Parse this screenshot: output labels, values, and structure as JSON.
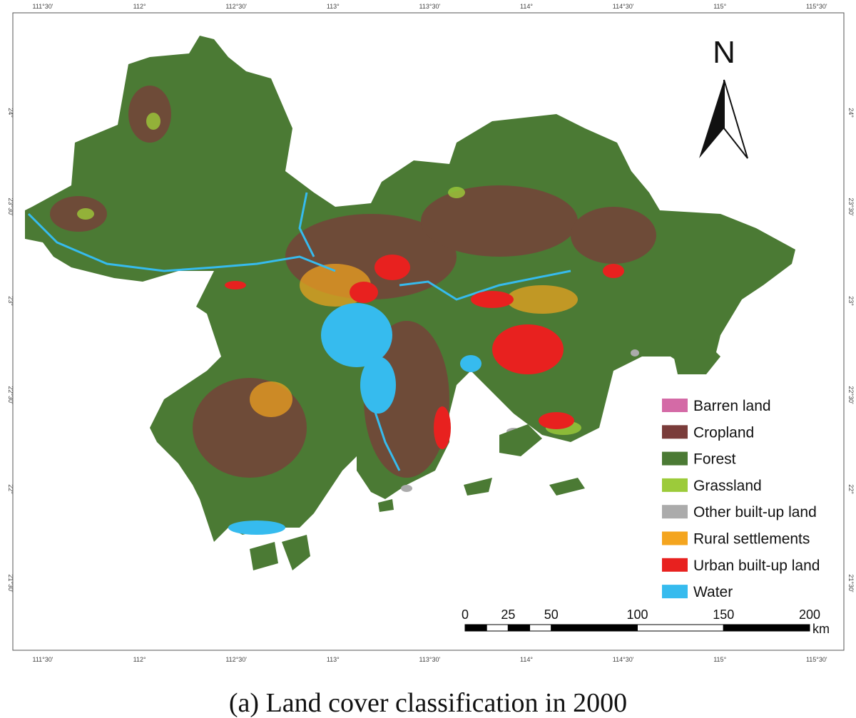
{
  "map": {
    "north": "N",
    "top_longitudes": [
      "111°30'",
      "112°",
      "112°30'",
      "113°",
      "113°30'",
      "114°",
      "114°30'",
      "115°",
      "115°30'"
    ],
    "bottom_longitudes": [
      "111°30'",
      "112°",
      "112°30'",
      "113°",
      "113°30'",
      "114°",
      "114°30'",
      "115°",
      "115°30'"
    ],
    "left_latitudes": [
      "24°",
      "23°30'",
      "23°",
      "22°30'",
      "22°",
      "21°30'"
    ],
    "right_latitudes": [
      "24°",
      "23°30'",
      "23°",
      "22°30'",
      "22°",
      "21°30'"
    ],
    "legend": [
      {
        "label": "Barren land",
        "color": "#d46aa6"
      },
      {
        "label": "Cropland",
        "color": "#7a3c3a"
      },
      {
        "label": "Forest",
        "color": "#4b7a34"
      },
      {
        "label": "Grassland",
        "color": "#9ccb3a"
      },
      {
        "label": "Other built-up land",
        "color": "#ababab"
      },
      {
        "label": "Rural settlements",
        "color": "#f4a51f"
      },
      {
        "label": "Urban built-up land",
        "color": "#e8211f"
      },
      {
        "label": "Water",
        "color": "#36bbee"
      }
    ],
    "scale_bar": {
      "ticks": [
        0,
        25,
        50,
        100,
        150,
        200
      ],
      "unit": "km"
    },
    "caption": "(a) Land cover classification in 2000"
  }
}
